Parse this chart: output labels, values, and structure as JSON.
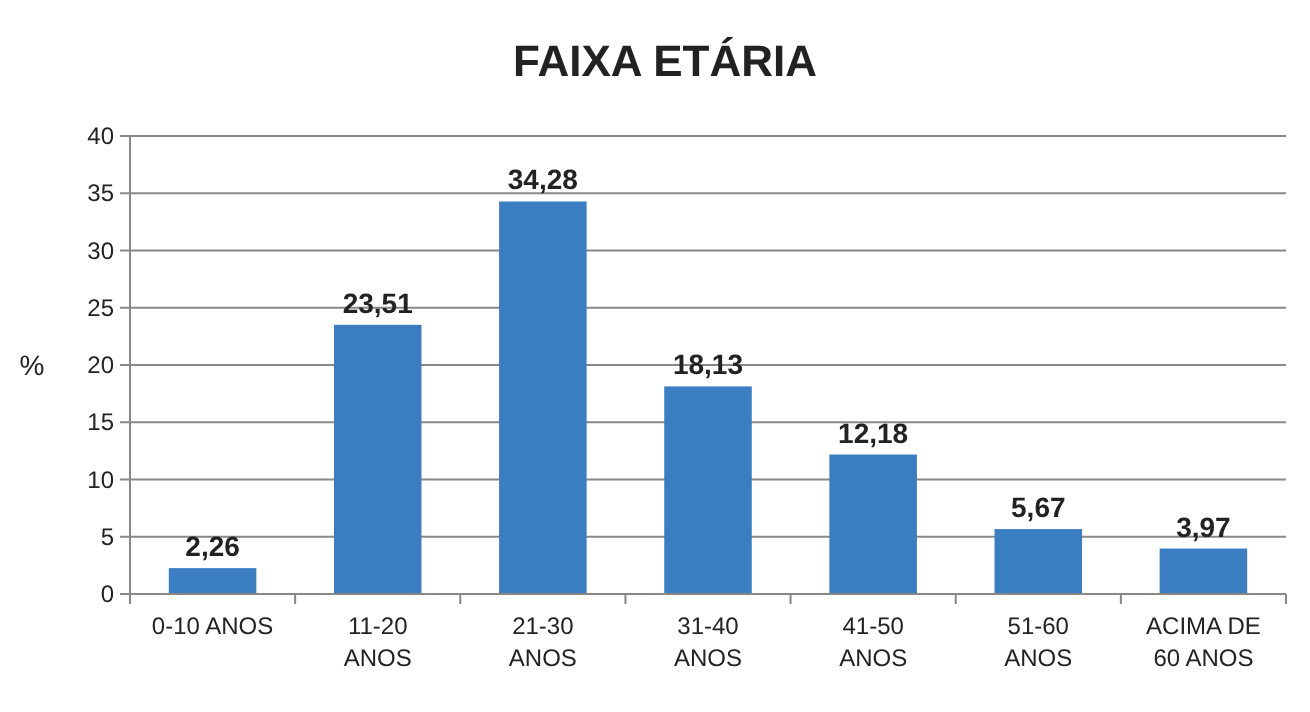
{
  "chart_data": {
    "type": "bar",
    "title": "FAIXA ETÁRIA",
    "ylabel": "%",
    "categories": [
      "0-10 ANOS",
      "11-20 ANOS",
      "21-30 ANOS",
      "31-40 ANOS",
      "41-50 ANOS",
      "51-60 ANOS",
      "ACIMA DE 60 ANOS"
    ],
    "values": [
      2.26,
      23.51,
      34.28,
      18.13,
      12.18,
      5.67,
      3.97
    ],
    "value_labels": [
      "2,26",
      "23,51",
      "34,28",
      "18,13",
      "12,18",
      "5,67",
      "3,97"
    ],
    "color": "#3a7dc0",
    "ylim": [
      0,
      40
    ],
    "yticks": [
      0,
      5,
      10,
      15,
      20,
      25,
      30,
      35,
      40
    ],
    "grid": "y"
  }
}
